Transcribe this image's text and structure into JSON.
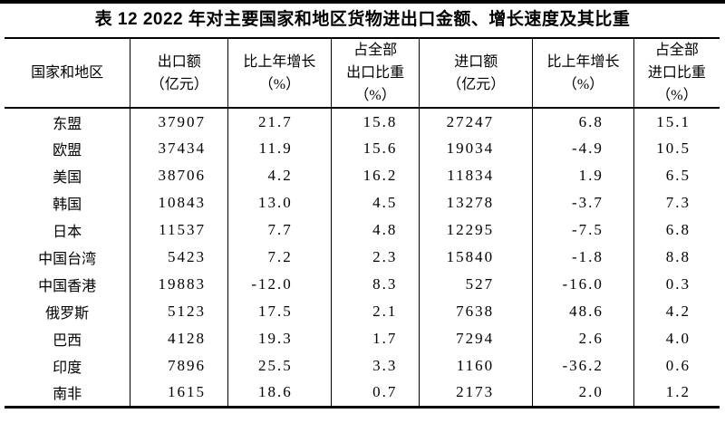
{
  "page": {
    "title": "表 12  2022 年对主要国家和地区货物进出口金额、增长速度及其比重"
  },
  "table": {
    "headers": {
      "country": {
        "l1": "国家和地区"
      },
      "export_amount": {
        "l1": "出口额",
        "l2": "（亿元）"
      },
      "export_growth": {
        "l1": "比上年增长",
        "l2": "（%）"
      },
      "export_share": {
        "l1": "占全部",
        "l2": "出口比重",
        "l3": "（%）"
      },
      "import_amount": {
        "l1": "进口额",
        "l2": "（亿元）"
      },
      "import_growth": {
        "l1": "比上年增长",
        "l2": "（%）"
      },
      "import_share": {
        "l1": "占全部",
        "l2": "进口比重",
        "l3": "（%）"
      }
    },
    "rows": [
      {
        "name": "东盟",
        "export_amount": "37907",
        "export_growth": "21.7",
        "export_share": "15.8",
        "import_amount": "27247",
        "import_growth": "6.8",
        "import_share": "15.1"
      },
      {
        "name": "欧盟",
        "export_amount": "37434",
        "export_growth": "11.9",
        "export_share": "15.6",
        "import_amount": "19034",
        "import_growth": "-4.9",
        "import_share": "10.5"
      },
      {
        "name": "美国",
        "export_amount": "38706",
        "export_growth": "4.2",
        "export_share": "16.2",
        "import_amount": "11834",
        "import_growth": "1.9",
        "import_share": "6.5"
      },
      {
        "name": "韩国",
        "export_amount": "10843",
        "export_growth": "13.0",
        "export_share": "4.5",
        "import_amount": "13278",
        "import_growth": "-3.7",
        "import_share": "7.3"
      },
      {
        "name": "日本",
        "export_amount": "11537",
        "export_growth": "7.7",
        "export_share": "4.8",
        "import_amount": "12295",
        "import_growth": "-7.5",
        "import_share": "6.8"
      },
      {
        "name": "中国台湾",
        "export_amount": "5423",
        "export_growth": "7.2",
        "export_share": "2.3",
        "import_amount": "15840",
        "import_growth": "-1.8",
        "import_share": "8.8"
      },
      {
        "name": "中国香港",
        "export_amount": "19883",
        "export_growth": "-12.0",
        "export_share": "8.3",
        "import_amount": "527",
        "import_growth": "-16.0",
        "import_share": "0.3"
      },
      {
        "name": "俄罗斯",
        "export_amount": "5123",
        "export_growth": "17.5",
        "export_share": "2.1",
        "import_amount": "7638",
        "import_growth": "48.6",
        "import_share": "4.2"
      },
      {
        "name": "巴西",
        "export_amount": "4128",
        "export_growth": "19.3",
        "export_share": "1.7",
        "import_amount": "7294",
        "import_growth": "2.6",
        "import_share": "4.0"
      },
      {
        "name": "印度",
        "export_amount": "7896",
        "export_growth": "25.5",
        "export_share": "3.3",
        "import_amount": "1160",
        "import_growth": "-36.2",
        "import_share": "0.6"
      },
      {
        "name": "南非",
        "export_amount": "1615",
        "export_growth": "18.6",
        "export_share": "0.7",
        "import_amount": "2173",
        "import_growth": "2.0",
        "import_share": "1.2"
      }
    ]
  }
}
